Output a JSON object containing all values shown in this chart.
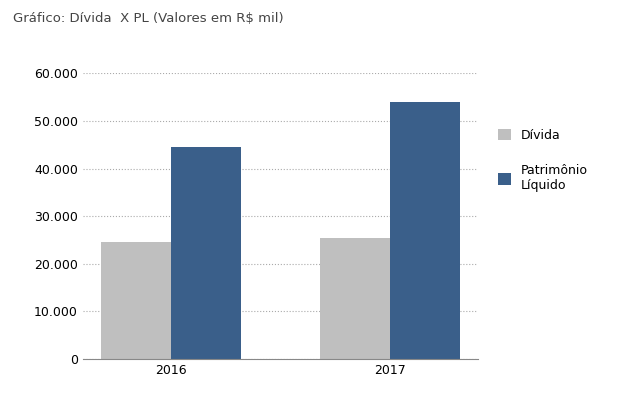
{
  "title": "Gráfico: Dívida  X PL (Valores em R$ mil)",
  "categories": [
    "2016",
    "2017"
  ],
  "divida": [
    24500,
    25500
  ],
  "patrimonio": [
    44500,
    54000
  ],
  "bar_color_divida": "#bfbfbf",
  "bar_color_patrimonio": "#3a5f8a",
  "ylim": [
    0,
    60000
  ],
  "yticks": [
    0,
    10000,
    20000,
    30000,
    40000,
    50000,
    60000
  ],
  "legend_labels": [
    "Dívida",
    "Patrimônio\nLíquido"
  ],
  "background_color": "#ffffff",
  "grid_color": "#aaaaaa",
  "bar_width": 0.32,
  "title_fontsize": 9.5,
  "tick_fontsize": 9,
  "legend_fontsize": 9
}
